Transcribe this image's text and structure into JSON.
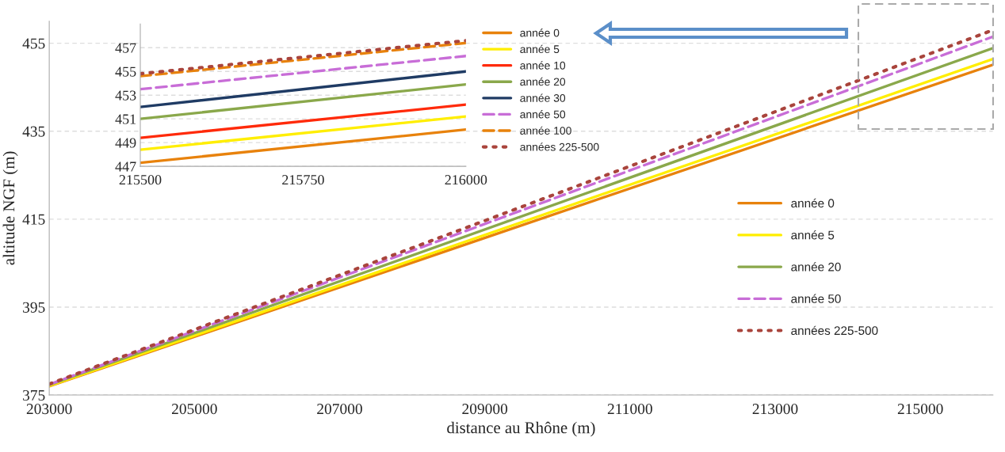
{
  "chart_data": [
    {
      "type": "line",
      "xlabel": "distance au Rhône (m)",
      "ylabel": "altitude NGF (m)",
      "x": [
        203000,
        216000
      ],
      "xlim": [
        203000,
        216000
      ],
      "xticks": [
        203000,
        205000,
        207000,
        209000,
        211000,
        213000,
        215000
      ],
      "ylim": [
        375,
        460
      ],
      "yticks": [
        375,
        395,
        415,
        435,
        455
      ],
      "grid": "y",
      "legend": "right",
      "series": [
        {
          "name": "année 0",
          "color": "#e8820c",
          "line_style": "solid",
          "values": [
            377.0,
            450.1
          ]
        },
        {
          "name": "année 5",
          "color": "#ffee00",
          "line_style": "solid",
          "values": [
            377.1,
            451.4
          ]
        },
        {
          "name": "année 20",
          "color": "#8aa84b",
          "line_style": "solid",
          "values": [
            377.3,
            453.9
          ]
        },
        {
          "name": "année 50",
          "color": "#c86dd7",
          "line_style": "dashed",
          "values": [
            377.4,
            456.5
          ]
        },
        {
          "name": "années 225-500",
          "color": "#a9443c",
          "line_style": "dotted",
          "values": [
            377.5,
            458.0
          ]
        }
      ]
    },
    {
      "type": "line",
      "x": [
        215500,
        216000
      ],
      "xlim": [
        215500,
        216000
      ],
      "xticks": [
        215500,
        215750,
        216000
      ],
      "ylim": [
        447,
        459
      ],
      "yticks": [
        447,
        449,
        451,
        453,
        455,
        457
      ],
      "grid": "y",
      "legend": "right",
      "series": [
        {
          "name": "année 0",
          "color": "#e8820c",
          "line_style": "solid",
          "values": [
            447.3,
            450.1
          ]
        },
        {
          "name": "année 5",
          "color": "#ffee00",
          "line_style": "solid",
          "values": [
            448.4,
            451.2
          ]
        },
        {
          "name": "année 10",
          "color": "#ff2a0a",
          "line_style": "solid",
          "values": [
            449.4,
            452.2
          ]
        },
        {
          "name": "année 20",
          "color": "#8aa84b",
          "line_style": "solid",
          "values": [
            451.0,
            453.9
          ]
        },
        {
          "name": "année 30",
          "color": "#1f3b64",
          "line_style": "solid",
          "values": [
            452.0,
            455.0
          ]
        },
        {
          "name": "année 50",
          "color": "#c86dd7",
          "line_style": "dashed",
          "values": [
            453.5,
            456.3
          ]
        },
        {
          "name": "année 100",
          "color": "#e8820c",
          "line_style": "dashed",
          "values": [
            454.6,
            457.4
          ]
        },
        {
          "name": "années 225-500",
          "color": "#a9443c",
          "line_style": "dotted",
          "values": [
            454.8,
            457.6
          ]
        }
      ]
    }
  ]
}
